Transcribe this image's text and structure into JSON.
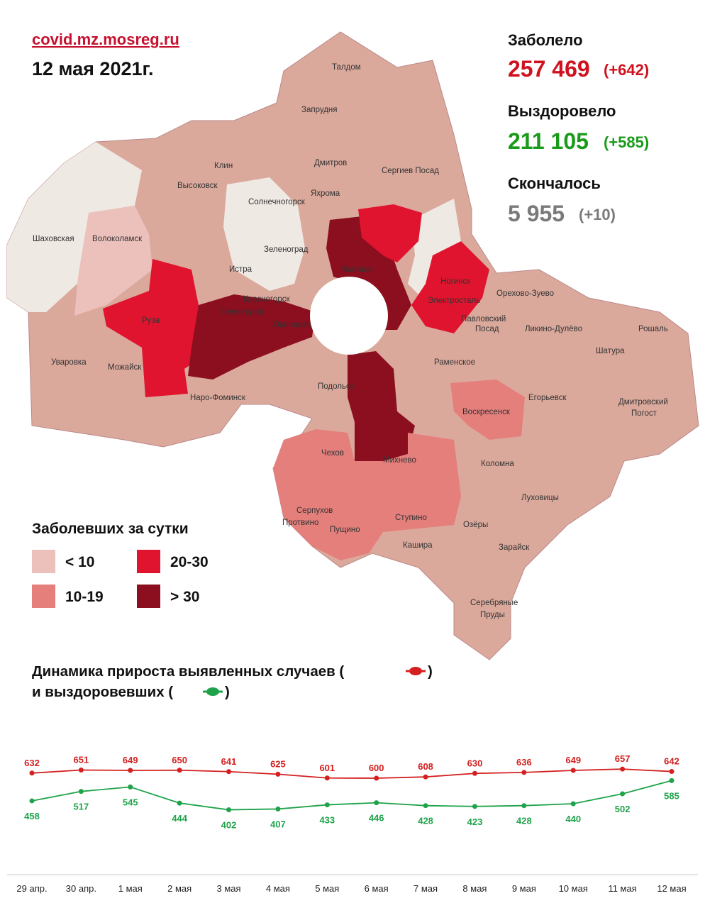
{
  "source": "covid.mz.mosreg.ru",
  "date": "12 мая 2021г.",
  "stats": [
    {
      "label": "Заболело",
      "total": "257 469",
      "delta": "(+642)",
      "color": "#d0121f"
    },
    {
      "label": "Выздоровело",
      "total": "211 105",
      "delta": "(+585)",
      "color": "#1a9a1a"
    },
    {
      "label": "Скончалось",
      "total": "5 955",
      "delta": "(+10)",
      "color": "#7a7a7a"
    }
  ],
  "map": {
    "legend_title": "Заболевших за сутки",
    "legend": [
      {
        "label": "< 10",
        "color": "#ecc0bb"
      },
      {
        "label": "10-19",
        "color": "#e47f7c"
      },
      {
        "label": "20-30",
        "color": "#e0142e"
      },
      {
        "label": "> 30",
        "color": "#8b0f1f"
      }
    ],
    "places": [
      "Талдом",
      "Запрудня",
      "Клин",
      "Дмитров",
      "Сергиев Посад",
      "Высоковск",
      "Яхрома",
      "Солнечногорск",
      "Шаховская",
      "Волоколамск",
      "Зеленоград",
      "Истра",
      "Мытищи",
      "Ногинск",
      "Красногорск",
      "Электросталь",
      "Орехово-Зуево",
      "Звенигород",
      "Одинцово",
      "Павловский",
      "Посад",
      "Ликино-Дулёво",
      "Рошаль",
      "Руза",
      "Шатура",
      "Уваровка",
      "Можайск",
      "Раменское",
      "Наро-Фоминск",
      "Подольск",
      "Егорьевск",
      "Дмитровский",
      "Погост",
      "Воскресенск",
      "Чехов",
      "Михнево",
      "Коломна",
      "Серпухов",
      "Протвино",
      "Луховицы",
      "Пущино",
      "Ступино",
      "Озёры",
      "Кашира",
      "Зарайск",
      "Серебряные",
      "Пруды"
    ]
  },
  "chart_data": {
    "type": "line",
    "title": [
      "Динамика прироста выявленных случаев (",
      ")"
    ],
    "subtitle": [
      "и выздоровевших (",
      ")"
    ],
    "categories": [
      "29 апр.",
      "30 апр.",
      "1 мая",
      "2 мая",
      "3 мая",
      "4 мая",
      "5 мая",
      "6 мая",
      "7 мая",
      "8 мая",
      "9 мая",
      "10 мая",
      "11 мая",
      "12 мая"
    ],
    "series": [
      {
        "color": "#d42020",
        "values": [
          632,
          651,
          649,
          650,
          641,
          625,
          601,
          600,
          608,
          630,
          636,
          649,
          657,
          642
        ]
      },
      {
        "color": "#1fa34a",
        "values": [
          458,
          517,
          545,
          444,
          402,
          407,
          433,
          446,
          428,
          423,
          428,
          440,
          502,
          585
        ]
      }
    ],
    "ylim": [
      0,
      700
    ]
  }
}
